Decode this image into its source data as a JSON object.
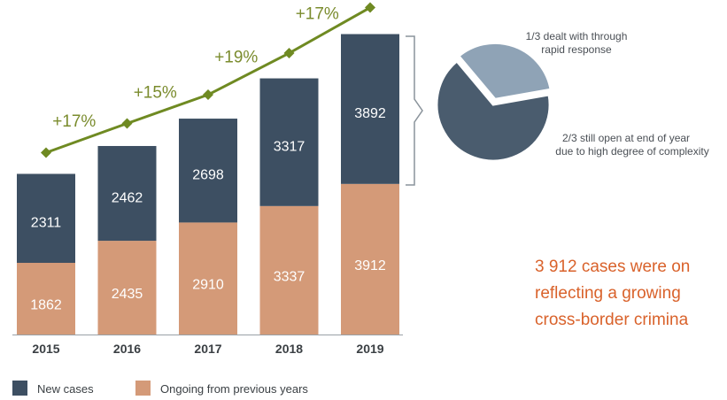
{
  "chart_data": {
    "type": "bar",
    "stacked": true,
    "categories": [
      "2015",
      "2016",
      "2017",
      "2018",
      "2019"
    ],
    "series": [
      {
        "name": "New cases",
        "values": [
          2311,
          2462,
          2698,
          3317,
          3892
        ],
        "color": "#3d4f62"
      },
      {
        "name": "Ongoing from previous years",
        "values": [
          1862,
          2435,
          2910,
          3337,
          3912
        ],
        "color": "#d49a78"
      }
    ],
    "growth_line": {
      "color": "#6f8a22",
      "labels": [
        "+17%",
        "+15%",
        "+19%",
        "+17%"
      ]
    },
    "pie": {
      "slices": [
        {
          "label": "1/3 dealt with through rapid response",
          "fraction": 0.3333,
          "color": "#8fa3b6"
        },
        {
          "label": "2/3 still open at end of year due to high degree of complexity",
          "fraction": 0.6667,
          "color": "#4a5c6e"
        }
      ],
      "label_small": {
        "line1": "1/3 dealt with through",
        "line2": "rapid response"
      },
      "label_large": {
        "line1": "2/3 still open at end of year",
        "line2": "due to high degree of complexity"
      }
    },
    "callout": {
      "line1": "3 912 cases were on",
      "line2": "reflecting a growing",
      "line3": "cross-border crimina",
      "color": "#d9622b"
    },
    "legend_placement": "bottom-left"
  }
}
